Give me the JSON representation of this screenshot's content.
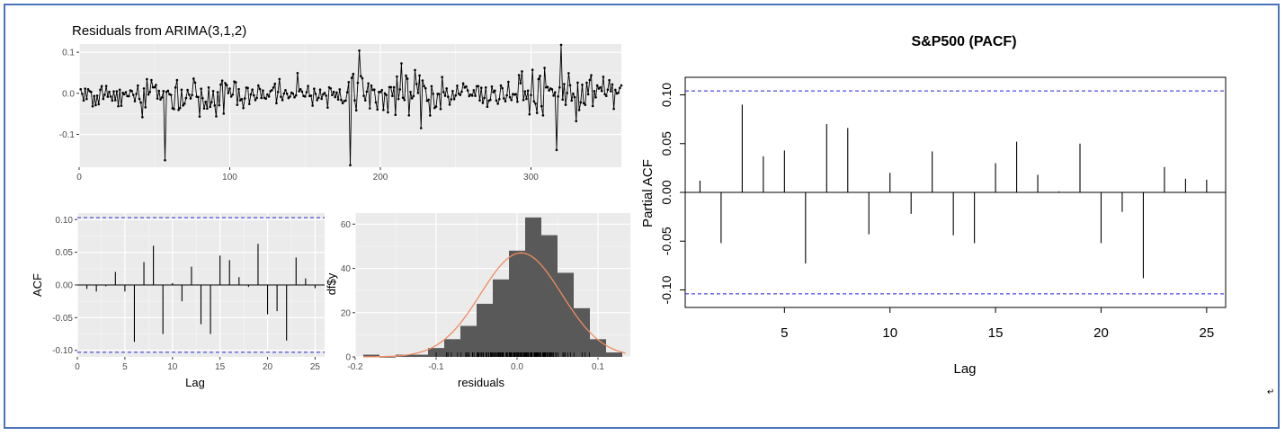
{
  "ui": {
    "return_mark": "↵"
  },
  "chart_data": [
    {
      "type": "line",
      "title": "Residuals from ARIMA(3,1,2)",
      "xlabel": "",
      "ylabel": "",
      "xlim": [
        0,
        360
      ],
      "ylim": [
        -0.18,
        0.12
      ],
      "xticks": [
        0,
        100,
        200,
        300
      ],
      "yticks": [
        -0.1,
        0.0,
        0.1
      ],
      "x_tick_labels": [
        "0",
        "100",
        "200",
        "300"
      ],
      "y_tick_labels": [
        "-0.1",
        "0.0",
        "0.1"
      ],
      "grid": true,
      "n": 360,
      "notable_points": [
        {
          "x": 57,
          "y": -0.163
        },
        {
          "x": 180,
          "y": -0.175
        },
        {
          "x": 186,
          "y": 0.104
        },
        {
          "x": 320,
          "y": 0.118
        },
        {
          "x": 317,
          "y": -0.138
        }
      ]
    },
    {
      "type": "bar",
      "title": "",
      "xlabel": "Lag",
      "ylabel": "ACF",
      "xlim": [
        0,
        26
      ],
      "ylim": [
        -0.11,
        0.11
      ],
      "xticks": [
        0,
        5,
        10,
        15,
        20,
        25
      ],
      "yticks": [
        -0.1,
        -0.05,
        0.0,
        0.05,
        0.1
      ],
      "x_tick_labels": [
        "0",
        "5",
        "10",
        "15",
        "20",
        "25"
      ],
      "y_tick_labels": [
        "-0.10",
        "-0.05",
        "0.00",
        "0.05",
        "0.10"
      ],
      "confidence_band": 0.103,
      "grid": true,
      "x": [
        1,
        2,
        3,
        4,
        5,
        6,
        7,
        8,
        9,
        10,
        11,
        12,
        13,
        14,
        15,
        16,
        17,
        18,
        19,
        20,
        21,
        22,
        23,
        24,
        25
      ],
      "values": [
        -0.006,
        -0.01,
        -0.002,
        0.02,
        -0.01,
        -0.087,
        0.035,
        0.06,
        -0.075,
        0.003,
        -0.025,
        0.028,
        -0.06,
        -0.075,
        0.045,
        0.038,
        0.012,
        -0.003,
        0.063,
        -0.045,
        -0.04,
        -0.085,
        0.042,
        0.01,
        -0.005
      ]
    },
    {
      "type": "bar",
      "title": "",
      "xlabel": "residuals",
      "ylabel": "df$y",
      "xlim": [
        -0.2,
        0.14
      ],
      "ylim": [
        0,
        65
      ],
      "xticks": [
        -0.2,
        -0.1,
        0.0,
        0.1
      ],
      "yticks": [
        0,
        20,
        40,
        60
      ],
      "x_tick_labels": [
        "-0.2",
        "-0.1",
        "0.0",
        "0.1"
      ],
      "y_tick_labels": [
        "0",
        "20",
        "40",
        "60"
      ],
      "grid": true,
      "bin_width": 0.02,
      "bin_starts": [
        -0.19,
        -0.17,
        -0.15,
        -0.13,
        -0.11,
        -0.09,
        -0.07,
        -0.05,
        -0.03,
        -0.01,
        0.01,
        0.03,
        0.05,
        0.07,
        0.09,
        0.11
      ],
      "values": [
        1,
        0,
        1,
        1,
        4,
        8,
        14,
        24,
        35,
        48,
        63,
        55,
        38,
        22,
        8,
        2
      ],
      "density_curve": {
        "mean": 0.005,
        "sd": 0.05,
        "peak": 47
      }
    },
    {
      "type": "bar",
      "title": "S&P500 (PACF)",
      "xlabel": "Lag",
      "ylabel": "Partial ACF",
      "xlim": [
        0.3,
        25.9
      ],
      "ylim": [
        -0.118,
        0.118
      ],
      "xticks": [
        5,
        10,
        15,
        20,
        25
      ],
      "yticks": [
        -0.1,
        -0.05,
        0.0,
        0.05,
        0.1
      ],
      "x_tick_labels": [
        "5",
        "10",
        "15",
        "20",
        "25"
      ],
      "y_tick_labels": [
        "-0.10",
        "-0.05",
        "0.00",
        "0.05",
        "0.10"
      ],
      "confidence_band": 0.104,
      "grid": false,
      "x": [
        1,
        2,
        3,
        4,
        5,
        6,
        7,
        8,
        9,
        10,
        11,
        12,
        13,
        14,
        15,
        16,
        17,
        18,
        19,
        20,
        21,
        22,
        23,
        24,
        25
      ],
      "values": [
        0.012,
        -0.052,
        0.09,
        0.037,
        0.043,
        -0.073,
        0.07,
        0.066,
        -0.043,
        0.02,
        -0.022,
        0.042,
        -0.044,
        -0.052,
        0.03,
        0.052,
        0.018,
        0.001,
        0.05,
        -0.052,
        -0.02,
        -0.088,
        0.026,
        0.014,
        0.013
      ]
    }
  ]
}
